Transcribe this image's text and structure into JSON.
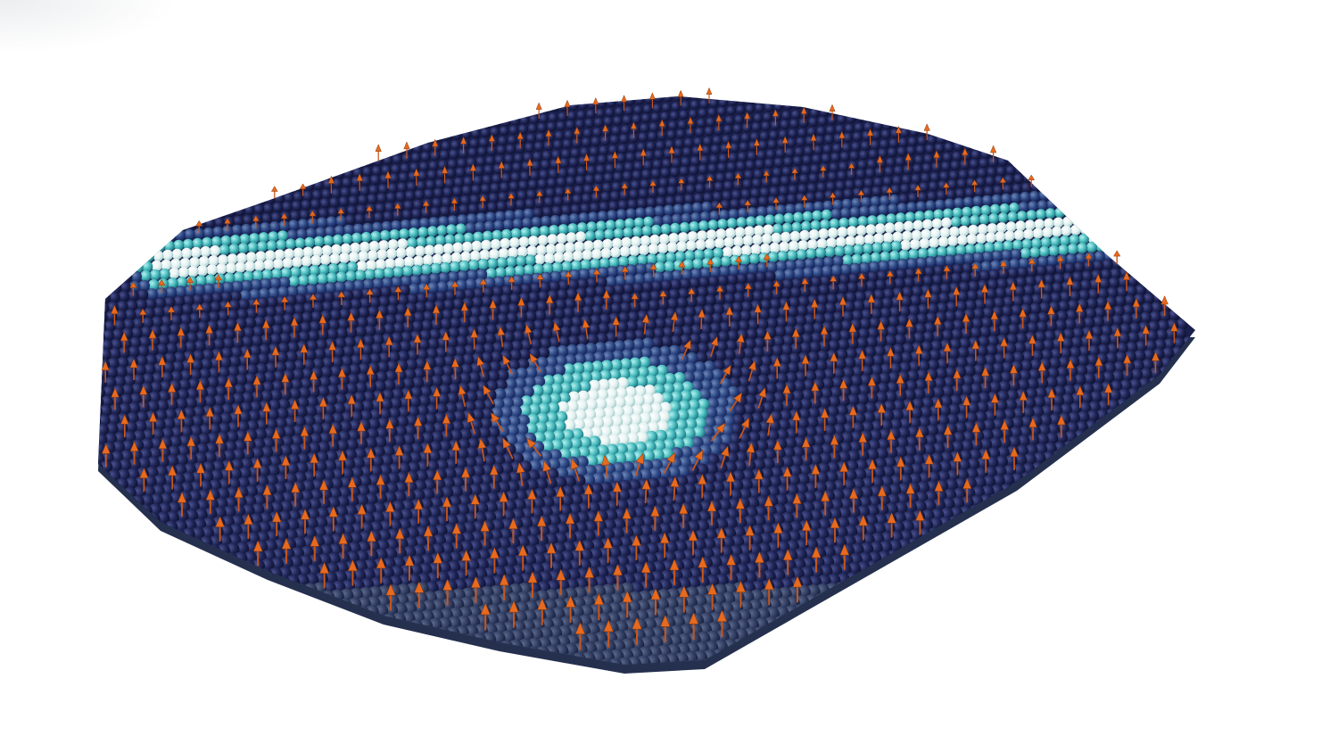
{
  "scene": {
    "description_text": "",
    "palette": {
      "background": "#ffffff",
      "sphere_dark": "#1b1f4e",
      "sphere_mid": "#2c3a7a",
      "sphere_teal": "#3fbfc0",
      "sphere_light": "#f2f7f7",
      "arrow": "#e0661c",
      "arrow_dark": "#8a3a0c"
    },
    "icons": [
      "sphere-lattice",
      "spin-arrow"
    ]
  }
}
